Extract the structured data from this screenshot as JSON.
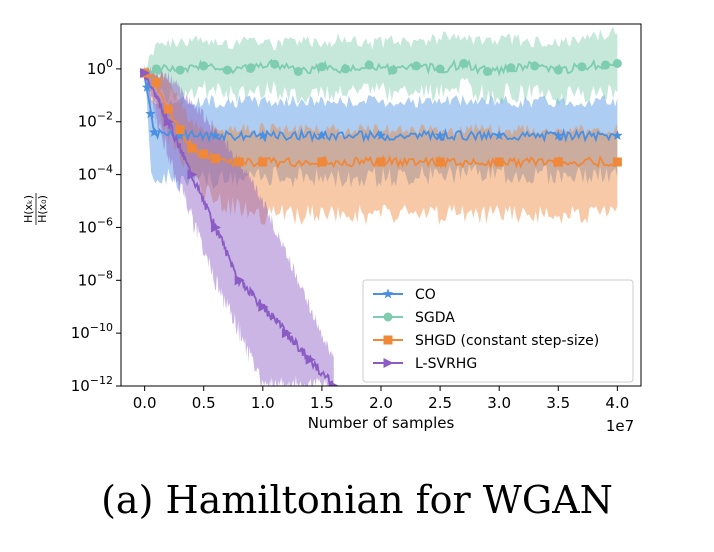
{
  "caption": "(a) Hamiltonian for WGAN",
  "chart_data": {
    "type": "line",
    "xlabel": "Number of samples",
    "x_offset_text": "1e7",
    "ylabel": "H(x_k) / H(x_0)",
    "xlim": [
      -0.2,
      4.2
    ],
    "x_scale_factor": 10000000,
    "ylim": [
      1e-12,
      50
    ],
    "yscale": "log",
    "x_ticks": [
      0.0,
      0.5,
      1.0,
      1.5,
      2.0,
      2.5,
      3.0,
      3.5,
      4.0
    ],
    "x_tick_labels": [
      "0.0",
      "0.5",
      "1.0",
      "1.5",
      "2.0",
      "2.5",
      "3.0",
      "3.5",
      "4.0"
    ],
    "y_ticks": [
      1,
      0.01,
      0.0001,
      1e-06,
      1e-08,
      1e-10,
      1e-12
    ],
    "y_tick_labels": [
      {
        "base": "10",
        "exp": "0"
      },
      {
        "base": "10",
        "exp": "−2"
      },
      {
        "base": "10",
        "exp": "−4"
      },
      {
        "base": "10",
        "exp": "−6"
      },
      {
        "base": "10",
        "exp": "−8"
      },
      {
        "base": "10",
        "exp": "−10"
      },
      {
        "base": "10",
        "exp": "−12"
      }
    ],
    "grid": false,
    "legend_position": "lower-right",
    "series": [
      {
        "name": "CO",
        "color": "#4a90e2",
        "marker": "star",
        "x": [
          0.0,
          0.02,
          0.05,
          0.08,
          0.3,
          0.6,
          1.0,
          1.5,
          2.0,
          2.5,
          3.0,
          3.5,
          4.0
        ],
        "y": [
          0.7,
          0.2,
          0.02,
          0.004,
          0.003,
          0.003,
          0.003,
          0.003,
          0.003,
          0.003,
          0.003,
          0.003,
          0.003
        ],
        "band_low": [
          0.3,
          0.03,
          0.0003,
          0.0001,
          5e-05,
          6e-05,
          8e-05,
          8e-05,
          8e-05,
          0.0001,
          0.0001,
          0.0001,
          0.0001
        ],
        "band_high": [
          1.0,
          0.5,
          0.1,
          0.06,
          0.06,
          0.06,
          0.06,
          0.06,
          0.06,
          0.06,
          0.06,
          0.06,
          0.06
        ]
      },
      {
        "name": "SGDA",
        "color": "#7fcdb0",
        "marker": "circle",
        "x": [
          0.0,
          0.1,
          0.3,
          0.5,
          0.7,
          0.9,
          1.1,
          1.3,
          1.5,
          1.7,
          1.9,
          2.1,
          2.3,
          2.5,
          2.7,
          2.9,
          3.1,
          3.3,
          3.5,
          3.7,
          3.9,
          4.0
        ],
        "y": [
          0.7,
          1.0,
          0.9,
          1.3,
          0.9,
          1.1,
          1.5,
          0.8,
          1.2,
          1.0,
          1.4,
          0.9,
          1.3,
          1.0,
          1.6,
          0.8,
          1.1,
          1.3,
          0.9,
          1.2,
          1.4,
          1.6
        ],
        "band_low": [
          0.4,
          0.15,
          0.1,
          0.2,
          0.1,
          0.12,
          0.15,
          0.1,
          0.15,
          0.12,
          0.2,
          0.1,
          0.15,
          0.12,
          0.2,
          0.1,
          0.12,
          0.15,
          0.1,
          0.12,
          0.15,
          0.1
        ],
        "band_high": [
          1.0,
          8,
          10,
          12,
          9,
          15,
          8,
          12,
          10,
          14,
          9,
          12,
          10,
          16,
          12,
          9,
          13,
          10,
          12,
          11,
          20,
          25
        ]
      },
      {
        "name": "SHGD (constant step-size)",
        "color": "#f0883a",
        "marker": "square",
        "x": [
          0.0,
          0.1,
          0.2,
          0.3,
          0.4,
          0.5,
          0.6,
          0.8,
          1.0,
          1.5,
          2.0,
          2.5,
          3.0,
          3.5,
          4.0
        ],
        "y": [
          0.7,
          0.3,
          0.03,
          0.005,
          0.001,
          0.0006,
          0.0004,
          0.0003,
          0.0003,
          0.0003,
          0.0003,
          0.0003,
          0.0003,
          0.0003,
          0.0003
        ],
        "band_low": [
          0.5,
          0.05,
          0.003,
          0.0004,
          0.0001,
          3e-05,
          1e-05,
          5e-06,
          3e-06,
          3e-06,
          3e-06,
          3e-06,
          3e-06,
          3e-06,
          3e-06
        ],
        "band_high": [
          1.0,
          0.9,
          0.3,
          0.05,
          0.01,
          0.006,
          0.005,
          0.005,
          0.005,
          0.005,
          0.005,
          0.005,
          0.005,
          0.005,
          0.005
        ]
      },
      {
        "name": "L-SVRHG",
        "color": "#8a5cc4",
        "marker": "triangle-right",
        "x": [
          0.0,
          0.2,
          0.4,
          0.6,
          0.8,
          1.0,
          1.2,
          1.4,
          1.6
        ],
        "y": [
          0.7,
          0.01,
          0.0001,
          1e-06,
          1e-08,
          1e-09,
          1e-10,
          1e-11,
          1e-12
        ],
        "band_low": [
          0.5,
          0.0005,
          2e-06,
          1e-08,
          1e-10,
          1e-12,
          1e-12,
          1e-12,
          1e-12
        ],
        "band_high": [
          1.0,
          0.5,
          0.05,
          0.005,
          0.0003,
          1e-05,
          1e-07,
          1e-09,
          1e-11
        ]
      }
    ]
  }
}
